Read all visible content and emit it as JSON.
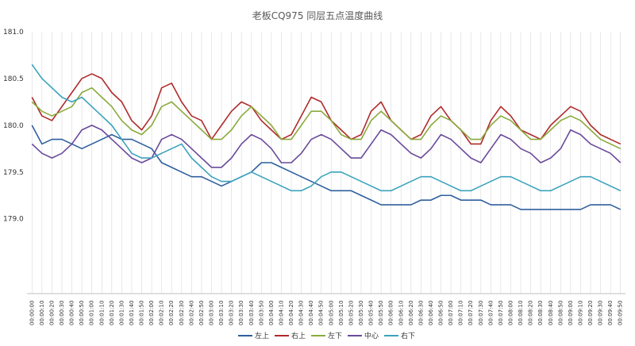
{
  "chart_data": {
    "type": "line",
    "title": "老板CQ975 同层五点温度曲线",
    "xlabel": "",
    "ylabel": "",
    "ylim": [
      178.2,
      181.0
    ],
    "yticks": [
      "181.0",
      "180.5",
      "180.0",
      "179.5",
      "179.0"
    ],
    "grid": "vertical",
    "legend_position": "bottom",
    "x": [
      "00:00:00",
      "00:00:10",
      "00:00:20",
      "00:00:30",
      "00:00:40",
      "00:00:50",
      "00:01:00",
      "00:01:10",
      "00:01:20",
      "00:01:30",
      "00:01:40",
      "00:01:50",
      "00:02:00",
      "00:02:10",
      "00:02:20",
      "00:02:30",
      "00:02:40",
      "00:02:50",
      "00:03:00",
      "00:03:10",
      "00:03:20",
      "00:03:30",
      "00:03:40",
      "00:03:50",
      "00:04:00",
      "00:04:10",
      "00:04:20",
      "00:04:30",
      "00:04:40",
      "00:04:50",
      "00:05:00",
      "00:05:10",
      "00:05:20",
      "00:05:30",
      "00:05:40",
      "00:05:50",
      "00:06:00",
      "00:06:10",
      "00:06:20",
      "00:06:30",
      "00:06:40",
      "00:06:50",
      "00:07:00",
      "00:07:10",
      "00:07:20",
      "00:07:30",
      "00:07:40",
      "00:07:50",
      "00:08:00",
      "00:08:10",
      "00:08:20",
      "00:08:30",
      "00:08:40",
      "00:08:50",
      "00:09:00",
      "00:09:10",
      "00:09:20",
      "00:09:30",
      "00:09:40",
      "00:09:50"
    ],
    "series": [
      {
        "name": "左上",
        "color": "#2f5f9e",
        "values": [
          180.0,
          179.8,
          179.85,
          179.85,
          179.8,
          179.75,
          179.8,
          179.85,
          179.9,
          179.85,
          179.85,
          179.8,
          179.75,
          179.6,
          179.55,
          179.5,
          179.45,
          179.45,
          179.4,
          179.35,
          179.4,
          179.45,
          179.5,
          179.6,
          179.6,
          179.55,
          179.5,
          179.45,
          179.4,
          179.35,
          179.3,
          179.3,
          179.3,
          179.25,
          179.2,
          179.15,
          179.15,
          179.15,
          179.15,
          179.2,
          179.2,
          179.25,
          179.25,
          179.2,
          179.2,
          179.2,
          179.15,
          179.15,
          179.15,
          179.1,
          179.1,
          179.1,
          179.1,
          179.1,
          179.1,
          179.1,
          179.15,
          179.15,
          179.15,
          179.1
        ]
      },
      {
        "name": "右上",
        "color": "#b02a2a",
        "values": [
          180.3,
          180.1,
          180.05,
          180.2,
          180.35,
          180.5,
          180.55,
          180.5,
          180.35,
          180.25,
          180.05,
          179.95,
          180.1,
          180.4,
          180.45,
          180.25,
          180.1,
          180.05,
          179.85,
          180.0,
          180.15,
          180.25,
          180.2,
          180.05,
          179.95,
          179.85,
          179.9,
          180.1,
          180.3,
          180.25,
          180.05,
          179.95,
          179.85,
          179.9,
          180.15,
          180.25,
          180.05,
          179.95,
          179.85,
          179.9,
          180.1,
          180.2,
          180.05,
          179.95,
          179.8,
          179.8,
          180.05,
          180.2,
          180.1,
          179.95,
          179.9,
          179.85,
          180.0,
          180.1,
          180.2,
          180.15,
          180.0,
          179.9,
          179.85,
          179.8
        ]
      },
      {
        "name": "左下",
        "color": "#8aaa3c",
        "values": [
          180.25,
          180.15,
          180.1,
          180.15,
          180.2,
          180.35,
          180.4,
          180.3,
          180.2,
          180.05,
          179.95,
          179.9,
          180.0,
          180.2,
          180.25,
          180.15,
          180.05,
          179.95,
          179.85,
          179.85,
          179.95,
          180.1,
          180.2,
          180.1,
          180.0,
          179.85,
          179.85,
          180.0,
          180.15,
          180.15,
          180.05,
          179.9,
          179.85,
          179.85,
          180.05,
          180.15,
          180.05,
          179.95,
          179.85,
          179.85,
          180.0,
          180.1,
          180.05,
          179.95,
          179.85,
          179.85,
          180.0,
          180.1,
          180.05,
          179.95,
          179.85,
          179.85,
          179.95,
          180.05,
          180.1,
          180.05,
          179.95,
          179.85,
          179.8,
          179.75
        ]
      },
      {
        "name": "中心",
        "color": "#6a4a9a",
        "values": [
          179.8,
          179.7,
          179.65,
          179.7,
          179.8,
          179.95,
          180.0,
          179.95,
          179.85,
          179.75,
          179.65,
          179.6,
          179.65,
          179.85,
          179.9,
          179.85,
          179.75,
          179.65,
          179.55,
          179.55,
          179.65,
          179.8,
          179.9,
          179.85,
          179.75,
          179.6,
          179.6,
          179.7,
          179.85,
          179.9,
          179.85,
          179.75,
          179.65,
          179.65,
          179.8,
          179.95,
          179.9,
          179.8,
          179.7,
          179.65,
          179.75,
          179.9,
          179.85,
          179.75,
          179.65,
          179.6,
          179.75,
          179.9,
          179.85,
          179.75,
          179.7,
          179.6,
          179.65,
          179.75,
          179.95,
          179.9,
          179.8,
          179.75,
          179.7,
          179.6
        ]
      },
      {
        "name": "右下",
        "color": "#3ba3bd",
        "values": [
          180.65,
          180.5,
          180.4,
          180.3,
          180.25,
          180.3,
          180.2,
          180.1,
          180.0,
          179.85,
          179.7,
          179.65,
          179.65,
          179.7,
          179.75,
          179.8,
          179.65,
          179.55,
          179.45,
          179.4,
          179.4,
          179.45,
          179.5,
          179.45,
          179.4,
          179.35,
          179.3,
          179.3,
          179.35,
          179.45,
          179.5,
          179.5,
          179.45,
          179.4,
          179.35,
          179.3,
          179.3,
          179.35,
          179.4,
          179.45,
          179.45,
          179.4,
          179.35,
          179.3,
          179.3,
          179.35,
          179.4,
          179.45,
          179.45,
          179.4,
          179.35,
          179.3,
          179.3,
          179.35,
          179.4,
          179.45,
          179.45,
          179.4,
          179.35,
          179.3
        ]
      }
    ]
  }
}
